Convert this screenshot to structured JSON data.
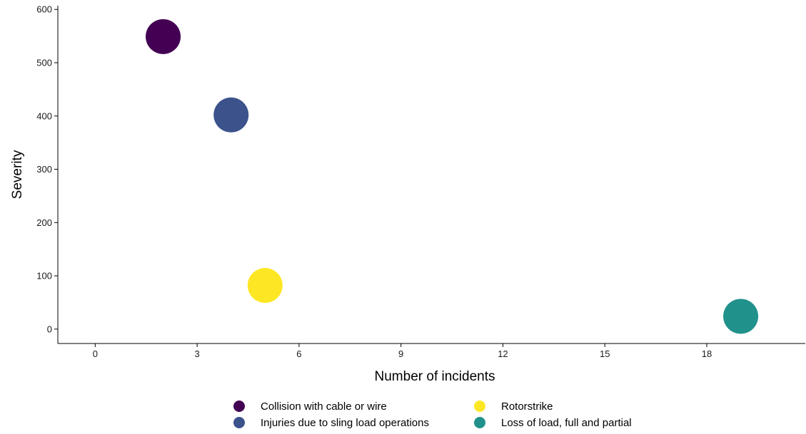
{
  "chart_data": {
    "type": "scatter",
    "title": "",
    "xlabel": "Number of incidents",
    "ylabel": "Severity",
    "xlim": [
      -1.1,
      20.9
    ],
    "ylim": [
      -27,
      607
    ],
    "xticks": [
      0,
      3,
      6,
      9,
      12,
      15,
      18
    ],
    "yticks": [
      0,
      100,
      200,
      300,
      400,
      500,
      600
    ],
    "grid": false,
    "legend_position": "bottom",
    "series": [
      {
        "name": "Collision with cable or wire",
        "color": "#440154",
        "x": 2,
        "y": 549
      },
      {
        "name": "Injuries due to sling load operations",
        "color": "#3b528b",
        "x": 4,
        "y": 402
      },
      {
        "name": "Rotorstrike",
        "color": "#fde725",
        "x": 5,
        "y": 82
      },
      {
        "name": "Loss of load, full and partial",
        "color": "#21918c",
        "x": 19,
        "y": 24
      }
    ]
  }
}
